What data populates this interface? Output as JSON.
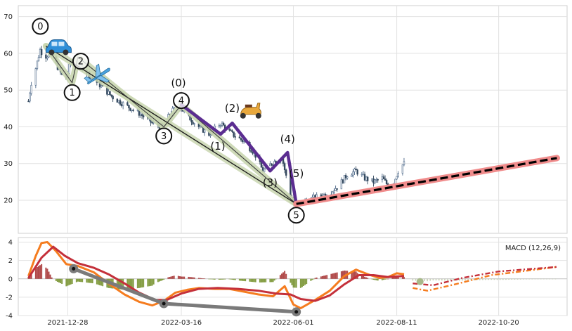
{
  "chart_data": [
    {
      "type": "candlestick",
      "panel": "price",
      "ylim": [
        11,
        73
      ],
      "yticks": [
        20,
        30,
        40,
        50,
        60,
        70
      ],
      "grid": true,
      "xlim": [
        "2021-11-24",
        "2022-12-06"
      ],
      "xticks": [
        "2021-12-28",
        "2022-03-16",
        "2022-06-01",
        "2022-08-11",
        "2022-10-20"
      ],
      "price_path": [
        [
          "2021-12-01",
          47
        ],
        [
          "2021-12-03",
          52
        ],
        [
          "2021-12-06",
          56
        ],
        [
          "2021-12-09",
          61
        ],
        [
          "2021-12-12",
          59
        ],
        [
          "2021-12-16",
          60
        ],
        [
          "2021-12-20",
          57
        ],
        [
          "2021-12-24",
          54
        ],
        [
          "2021-12-27",
          53
        ],
        [
          "2021-12-30",
          58
        ],
        [
          "2022-01-05",
          57
        ],
        [
          "2022-01-12",
          54
        ],
        [
          "2022-01-20",
          51
        ],
        [
          "2022-01-28",
          48
        ],
        [
          "2022-02-05",
          46
        ],
        [
          "2022-02-14",
          44
        ],
        [
          "2022-02-24",
          41
        ],
        [
          "2022-03-03",
          40
        ],
        [
          "2022-03-09",
          44
        ],
        [
          "2022-03-14",
          46
        ],
        [
          "2022-03-20",
          43
        ],
        [
          "2022-03-28",
          40
        ],
        [
          "2022-04-04",
          38
        ],
        [
          "2022-04-12",
          41
        ],
        [
          "2022-04-20",
          38
        ],
        [
          "2022-04-28",
          36
        ],
        [
          "2022-05-05",
          33
        ],
        [
          "2022-05-11",
          28
        ],
        [
          "2022-05-17",
          30
        ],
        [
          "2022-05-24",
          32
        ],
        [
          "2022-05-30",
          21
        ],
        [
          "2022-06-03",
          19
        ],
        [
          "2022-06-10",
          20
        ],
        [
          "2022-06-18",
          21
        ],
        [
          "2022-06-26",
          22
        ],
        [
          "2022-07-02",
          24
        ],
        [
          "2022-07-08",
          27
        ],
        [
          "2022-07-14",
          28
        ],
        [
          "2022-07-20",
          26
        ],
        [
          "2022-07-26",
          25
        ],
        [
          "2022-08-01",
          26
        ],
        [
          "2022-08-05",
          24
        ],
        [
          "2022-08-09",
          25
        ],
        [
          "2022-08-13",
          29
        ],
        [
          "2022-08-16",
          30
        ]
      ],
      "wave_primary": {
        "labels": [
          "0",
          "1",
          "2",
          "3",
          "4",
          "5"
        ],
        "points": [
          [
            "2021-12-13",
            62
          ],
          [
            "2021-12-31",
            52
          ],
          [
            "2022-01-04",
            59
          ],
          [
            "2022-03-04",
            40
          ],
          [
            "2022-03-16",
            46
          ],
          [
            "2022-06-03",
            19
          ]
        ]
      },
      "wave_secondary": {
        "labels": [
          "(0)",
          "(1)",
          "(2)",
          "(3)",
          "(4)",
          "(5)"
        ],
        "points": [
          [
            "2022-03-16",
            46
          ],
          [
            "2022-04-12",
            38
          ],
          [
            "2022-04-20",
            41
          ],
          [
            "2022-05-16",
            28
          ],
          [
            "2022-05-28",
            33
          ],
          [
            "2022-06-03",
            19
          ]
        ]
      },
      "trend_lines": [
        {
          "kind": "support",
          "points": [
            [
              "2021-12-13",
              62
            ],
            [
              "2022-06-03",
              19
            ]
          ]
        },
        {
          "kind": "projection",
          "points": [
            [
              "2022-06-03",
              19
            ],
            [
              "2022-11-29",
              31.5
            ]
          ]
        }
      ],
      "icons": [
        "car-icon",
        "airplane-icon",
        "scooter-icon"
      ]
    },
    {
      "type": "bar+line",
      "panel": "macd",
      "legend": "MACD (12,26,9)",
      "ylim": [
        -4,
        4.5
      ],
      "yticks": [
        -4,
        -2,
        0,
        2,
        4
      ],
      "macd": [
        [
          "2021-12-01",
          0.3
        ],
        [
          "2021-12-06",
          2.5
        ],
        [
          "2021-12-10",
          3.9
        ],
        [
          "2021-12-14",
          4.0
        ],
        [
          "2021-12-20",
          3.0
        ],
        [
          "2021-12-27",
          1.6
        ],
        [
          "2022-01-04",
          1.4
        ],
        [
          "2022-01-15",
          0.7
        ],
        [
          "2022-01-25",
          -0.5
        ],
        [
          "2022-02-05",
          -1.7
        ],
        [
          "2022-02-15",
          -2.5
        ],
        [
          "2022-02-24",
          -2.9
        ],
        [
          "2022-03-04",
          -2.4
        ],
        [
          "2022-03-12",
          -1.5
        ],
        [
          "2022-03-20",
          -1.2
        ],
        [
          "2022-03-28",
          -1.0
        ],
        [
          "2022-04-08",
          -1.1
        ],
        [
          "2022-04-18",
          -1.1
        ],
        [
          "2022-04-28",
          -1.4
        ],
        [
          "2022-05-08",
          -1.7
        ],
        [
          "2022-05-18",
          -1.9
        ],
        [
          "2022-05-26",
          -0.8
        ],
        [
          "2022-06-01",
          -2.8
        ],
        [
          "2022-06-06",
          -3.2
        ],
        [
          "2022-06-16",
          -2.3
        ],
        [
          "2022-06-26",
          -1.3
        ],
        [
          "2022-07-06",
          0.3
        ],
        [
          "2022-07-14",
          1.0
        ],
        [
          "2022-07-22",
          0.5
        ],
        [
          "2022-07-30",
          0.1
        ],
        [
          "2022-08-05",
          0.2
        ],
        [
          "2022-08-11",
          0.6
        ],
        [
          "2022-08-16",
          0.5
        ]
      ],
      "signal": [
        [
          "2021-12-01",
          0.1
        ],
        [
          "2021-12-10",
          2.3
        ],
        [
          "2021-12-18",
          3.5
        ],
        [
          "2021-12-26",
          2.5
        ],
        [
          "2022-01-04",
          1.7
        ],
        [
          "2022-01-15",
          1.2
        ],
        [
          "2022-01-25",
          0.5
        ],
        [
          "2022-02-05",
          -0.5
        ],
        [
          "2022-02-15",
          -1.5
        ],
        [
          "2022-02-26",
          -2.3
        ],
        [
          "2022-03-06",
          -2.3
        ],
        [
          "2022-03-16",
          -1.6
        ],
        [
          "2022-03-28",
          -1.1
        ],
        [
          "2022-04-10",
          -1.0
        ],
        [
          "2022-04-24",
          -1.1
        ],
        [
          "2022-05-08",
          -1.3
        ],
        [
          "2022-05-20",
          -1.6
        ],
        [
          "2022-05-30",
          -1.7
        ],
        [
          "2022-06-06",
          -2.2
        ],
        [
          "2022-06-16",
          -2.4
        ],
        [
          "2022-06-26",
          -1.8
        ],
        [
          "2022-07-06",
          -0.6
        ],
        [
          "2022-07-16",
          0.4
        ],
        [
          "2022-07-26",
          0.4
        ],
        [
          "2022-08-05",
          0.2
        ],
        [
          "2022-08-16",
          0.3
        ]
      ],
      "projection_macd": [
        [
          "2022-08-22",
          -1.0
        ],
        [
          "2022-09-01",
          -1.3
        ],
        [
          "2022-09-20",
          -0.6
        ],
        [
          "2022-10-15",
          0.4
        ],
        [
          "2022-11-29",
          1.3
        ]
      ],
      "projection_signal": [
        [
          "2022-08-22",
          -0.5
        ],
        [
          "2022-09-05",
          -0.7
        ],
        [
          "2022-09-25",
          0.1
        ],
        [
          "2022-10-20",
          0.8
        ],
        [
          "2022-11-29",
          1.3
        ]
      ],
      "divergence": [
        [
          "2022-01-01",
          1.1
        ],
        [
          "2022-03-04",
          -2.7
        ],
        [
          "2022-06-03",
          -3.6
        ]
      ]
    }
  ]
}
